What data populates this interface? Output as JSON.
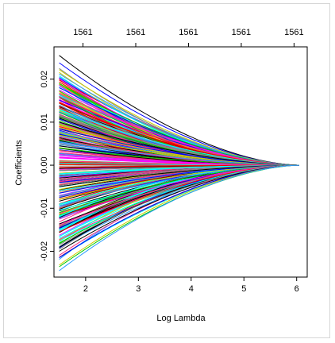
{
  "chart_data": {
    "type": "line",
    "xlabel": "Log Lambda",
    "ylabel": "Coefficients",
    "xlim": [
      1.4,
      6.2
    ],
    "ylim": [
      -0.026,
      0.0275
    ],
    "x_ticks": [
      2,
      3,
      4,
      5,
      6
    ],
    "x_tick_labels": [
      "2",
      "3",
      "4",
      "5",
      "6"
    ],
    "y_ticks": [
      -0.02,
      -0.01,
      0.0,
      0.01,
      0.02
    ],
    "y_tick_labels": [
      "-0.02",
      "-0.01",
      "0.00",
      "0.01",
      "0.02"
    ],
    "top_axis_ticks": [
      1.95,
      2.95,
      3.95,
      4.95,
      5.95
    ],
    "top_axis_labels": [
      "1561",
      "1561",
      "1561",
      "1561",
      "1561"
    ],
    "x_start": 1.5,
    "x_end": 6.05,
    "num_paths": 1561,
    "path_endpoints_at_min_lambda": [
      0.0255,
      0.0238,
      0.0222,
      0.0205,
      0.019,
      0.0175,
      0.016,
      0.0145,
      0.013,
      0.0115,
      0.01,
      0.0085,
      0.007,
      0.0055,
      0.004,
      0.0025,
      0.001,
      -0.0005,
      -0.002,
      -0.0035,
      -0.005,
      -0.0065,
      -0.008,
      -0.0095,
      -0.011,
      -0.0125,
      -0.014,
      -0.0155,
      -0.017,
      -0.0185,
      -0.02,
      -0.0215,
      -0.0232,
      -0.0245
    ],
    "series_colors": [
      "#000000",
      "#ff0000",
      "#00cc00",
      "#0000ff",
      "#00ffff",
      "#ff00ff",
      "#cccc00",
      "#888888",
      "#ff2b80",
      "#2b9cff"
    ],
    "grid": false,
    "legend": "none"
  }
}
